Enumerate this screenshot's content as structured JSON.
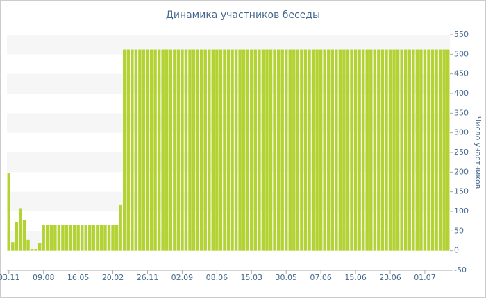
{
  "chart_data": {
    "type": "bar",
    "title": "Динамика участников беседы",
    "y_label": "Число участников",
    "categories": [
      "03.11",
      null,
      null,
      null,
      null,
      null,
      null,
      null,
      null,
      "09.08",
      null,
      null,
      null,
      null,
      null,
      null,
      null,
      null,
      "16.05",
      null,
      null,
      null,
      null,
      null,
      null,
      null,
      null,
      "20.02",
      null,
      null,
      null,
      null,
      null,
      null,
      null,
      null,
      "26.11",
      null,
      null,
      null,
      null,
      null,
      null,
      null,
      null,
      "02.09",
      null,
      null,
      null,
      null,
      null,
      null,
      null,
      null,
      "08.06",
      null,
      null,
      null,
      null,
      null,
      null,
      null,
      null,
      "15.03",
      null,
      null,
      null,
      null,
      null,
      null,
      null,
      null,
      "30.05",
      null,
      null,
      null,
      null,
      null,
      null,
      null,
      null,
      "07.06",
      null,
      null,
      null,
      null,
      null,
      null,
      null,
      null,
      "15.06",
      null,
      null,
      null,
      null,
      null,
      null,
      null,
      null,
      "23.06",
      null,
      null,
      null,
      null,
      null,
      null,
      null,
      null,
      "01.07",
      null,
      null,
      null,
      null,
      null,
      null
    ],
    "values": [
      197,
      22,
      72,
      108,
      77,
      28,
      3,
      3,
      20,
      66,
      66,
      66,
      66,
      66,
      66,
      66,
      66,
      66,
      66,
      66,
      66,
      66,
      66,
      66,
      66,
      66,
      66,
      66,
      66,
      116,
      512,
      512,
      512,
      512,
      512,
      512,
      512,
      512,
      512,
      512,
      512,
      512,
      512,
      512,
      512,
      512,
      512,
      512,
      512,
      512,
      512,
      512,
      512,
      512,
      512,
      512,
      512,
      512,
      512,
      512,
      512,
      512,
      512,
      512,
      512,
      512,
      512,
      512,
      512,
      512,
      512,
      512,
      512,
      512,
      512,
      512,
      512,
      512,
      512,
      512,
      512,
      512,
      512,
      512,
      512,
      512,
      512,
      512,
      512,
      512,
      512,
      512,
      512,
      512,
      512,
      512,
      512,
      512,
      512,
      512,
      512,
      512,
      512,
      512,
      512,
      512,
      512,
      512,
      512,
      512,
      512,
      512,
      512,
      512,
      512
    ],
    "color": "#b3d334",
    "ylim": [
      -50,
      550
    ],
    "yticks": [
      -50,
      0,
      50,
      100,
      150,
      200,
      250,
      300,
      350,
      400,
      450,
      500,
      550
    ],
    "grid": true
  }
}
